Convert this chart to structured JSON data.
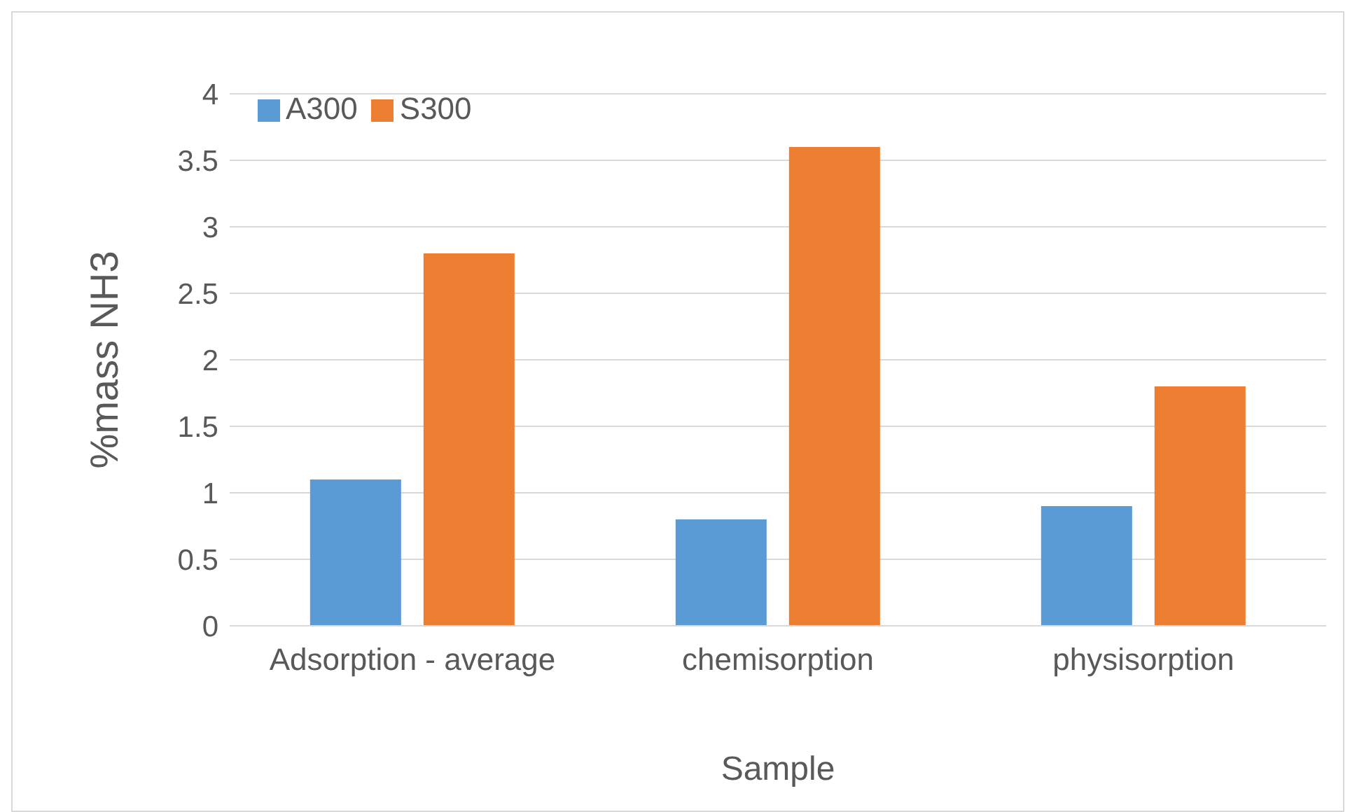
{
  "chart_data": {
    "type": "bar",
    "xlabel": "Sample",
    "ylabel": "%mass NH3",
    "categories": [
      "Adsorption - average",
      "chemisorption",
      "physisorption"
    ],
    "series": [
      {
        "name": "A300",
        "color": "#5b9bd5",
        "values": [
          1.1,
          0.8,
          0.9
        ]
      },
      {
        "name": "S300",
        "color": "#ed7d31",
        "values": [
          2.8,
          3.6,
          1.8
        ]
      }
    ],
    "ylim": [
      0,
      4
    ],
    "yticks": [
      0,
      0.5,
      1,
      1.5,
      2,
      2.5,
      3,
      3.5,
      4
    ],
    "grid": "y",
    "legend": "top left"
  }
}
